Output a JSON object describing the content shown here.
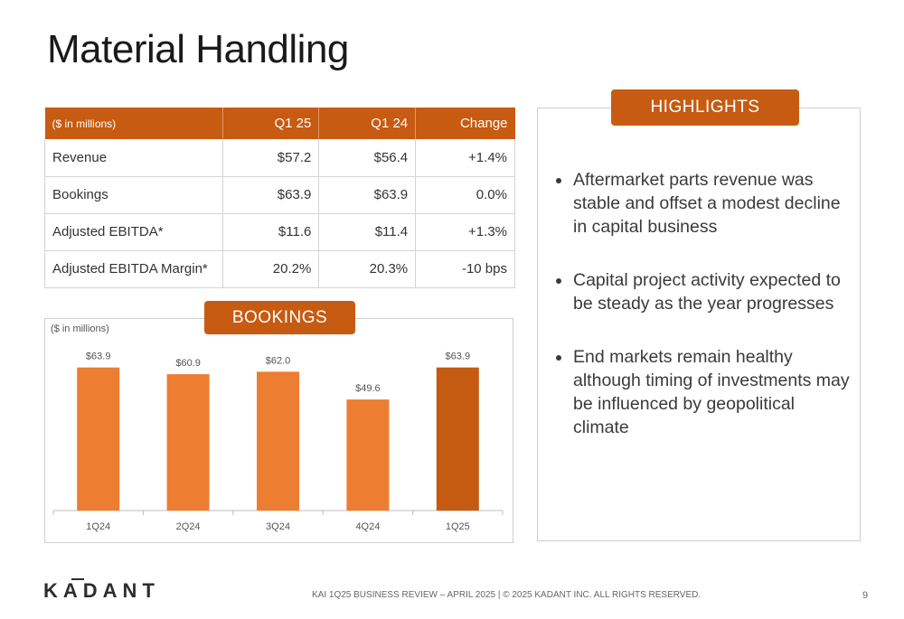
{
  "page": {
    "title": "Material Handling"
  },
  "metrics_table": {
    "header": [
      "($ in millions)",
      "Q1 25",
      "Q1 24",
      "Change"
    ],
    "rows": [
      [
        "Revenue",
        "$57.2",
        "$56.4",
        "+1.4%"
      ],
      [
        "Bookings",
        "$63.9",
        "$63.9",
        "0.0%"
      ],
      [
        "Adjusted EBITDA*",
        "$11.6",
        "$11.4",
        "+1.3%"
      ],
      [
        "Adjusted EBITDA Margin*",
        "20.2%",
        "20.3%",
        "-10 bps"
      ]
    ]
  },
  "bookings": {
    "label": "BOOKINGS",
    "unit_note": "($ in millions)"
  },
  "chart_data": {
    "type": "bar",
    "categories": [
      "1Q24",
      "2Q24",
      "3Q24",
      "4Q24",
      "1Q25"
    ],
    "values": [
      63.9,
      60.9,
      62.0,
      49.6,
      63.9
    ],
    "data_labels": [
      "$63.9",
      "$60.9",
      "$62.0",
      "$49.6",
      "$63.9"
    ],
    "title": "",
    "xlabel": "",
    "ylabel": "",
    "ylim": [
      0,
      80
    ],
    "grid": false,
    "colors": {
      "prior_quarters": "#ed7d31",
      "current_quarter": "#c55a11"
    }
  },
  "highlights": {
    "label": "HIGHLIGHTS",
    "items": [
      "Aftermarket parts revenue was stable and offset a modest decline in capital business",
      "Capital project activity expected to be steady as the year progresses",
      "End markets remain healthy although timing of investments may be influenced by geopolitical climate"
    ]
  },
  "footer": {
    "logo_text": "KADANT",
    "text": "KAI 1Q25 BUSINESS REVIEW – APRIL 2025 | © 2025 KADANT INC. ALL RIGHTS RESERVED.",
    "page_number": "9"
  },
  "colors": {
    "accent": "#c75b12"
  }
}
